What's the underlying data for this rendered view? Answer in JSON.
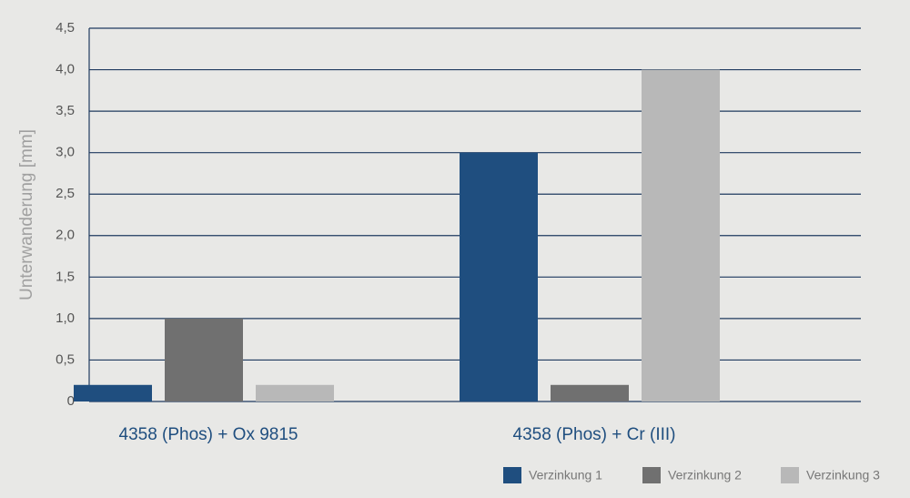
{
  "chart_data": {
    "type": "bar",
    "y_label": "Unterwanderung [mm]",
    "categories": [
      "4358 (Phos) + Ox 9815",
      "4358 (Phos) + Cr (III)"
    ],
    "series": [
      {
        "name": "Verzinkung 1",
        "color": "#1f4e7f",
        "values": [
          0.2,
          3.0
        ]
      },
      {
        "name": "Verzinkung 2",
        "color": "#707070",
        "values": [
          1.0,
          0.2
        ]
      },
      {
        "name": "Verzinkung 3",
        "color": "#b8b8b8",
        "values": [
          0.2,
          4.0
        ]
      }
    ],
    "ylim": [
      0,
      4.5
    ],
    "yticks": [
      0,
      {
        "value": 0.5,
        "label": "0,5"
      },
      {
        "value": 1.0,
        "label": "1,0"
      },
      {
        "value": 1.5,
        "label": "1,5"
      },
      {
        "value": 2.0,
        "label": "2,0"
      },
      {
        "value": 2.5,
        "label": "2,5"
      },
      {
        "value": 3.0,
        "label": "3,0"
      },
      {
        "value": 3.5,
        "label": "3,5"
      },
      {
        "value": 4.0,
        "label": "4,0"
      },
      {
        "value": 4.5,
        "label": "4,5"
      }
    ],
    "grid": true,
    "legend": "bottom-right"
  }
}
